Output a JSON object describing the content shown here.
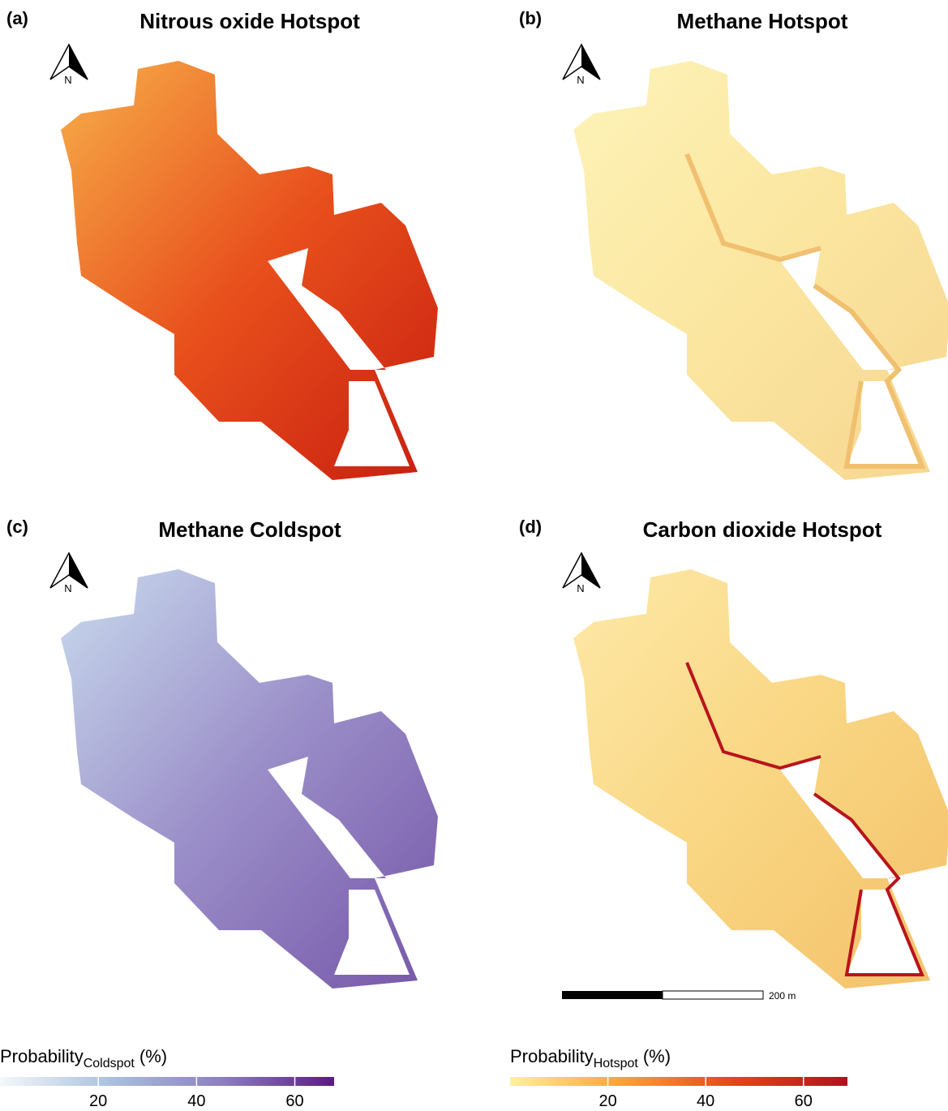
{
  "panels": [
    {
      "label": "(a)",
      "title": "Nitrous oxide Hotspot",
      "north": "N",
      "colors": [
        "#f7b04a",
        "#e8501c",
        "#c81e10"
      ]
    },
    {
      "label": "(b)",
      "title": "Methane Hotspot",
      "north": "N",
      "colors": [
        "#fdf3b8",
        "#fbe6a0",
        "#f6d690"
      ]
    },
    {
      "label": "(c)",
      "title": "Methane Coldspot",
      "north": "N",
      "colors": [
        "#c9dbee",
        "#9a8ec8",
        "#7656a8"
      ]
    },
    {
      "label": "(d)",
      "title": "Carbon dioxide Hotspot",
      "north": "N",
      "colors": [
        "#fde9a8",
        "#f9d682",
        "#f4c06a"
      ]
    }
  ],
  "scale_bar": {
    "label": "200 m"
  },
  "legends": [
    {
      "title": "Probability",
      "subscript": "Coldspot",
      "unit": "(%)",
      "range": [
        0,
        68
      ],
      "ticks": [
        20,
        40,
        60
      ],
      "colors": [
        "#f4f8fc",
        "#a9c0df",
        "#8c7fbf",
        "#5c1a82"
      ]
    },
    {
      "title": "Probability",
      "subscript": "Hotspot",
      "unit": "(%)",
      "range": [
        0,
        69
      ],
      "ticks": [
        20,
        40,
        60
      ],
      "colors": [
        "#fff0a0",
        "#f9a23a",
        "#e8431c",
        "#b4101e"
      ]
    }
  ]
}
